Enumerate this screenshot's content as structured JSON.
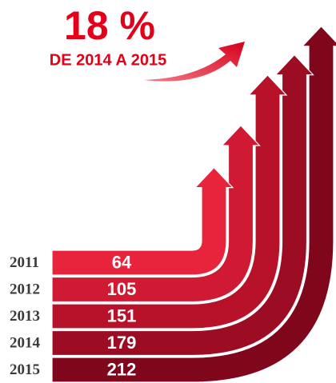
{
  "chart_data": {
    "type": "bent-arrows",
    "title": "18 %",
    "subtitle": "DE 2014 A 2015",
    "categories": [
      "2011",
      "2012",
      "2013",
      "2014",
      "2015"
    ],
    "values": [
      64,
      105,
      151,
      179,
      212
    ],
    "colors": [
      "#e8243c",
      "#d01a33",
      "#b8122b",
      "#9c0c23",
      "#80061b"
    ]
  }
}
